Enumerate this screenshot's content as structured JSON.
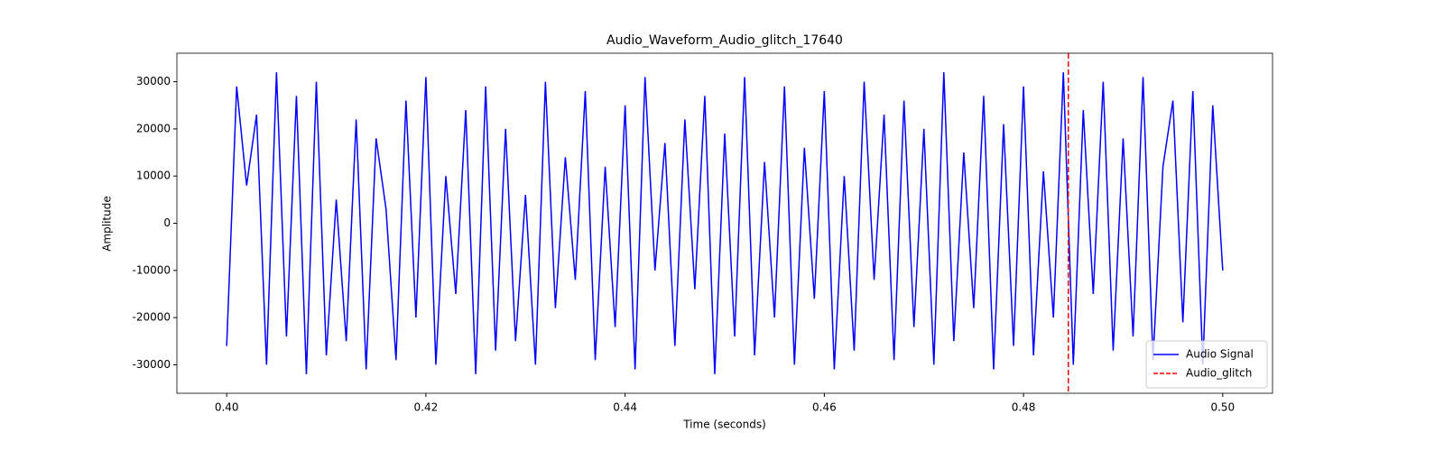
{
  "chart_data": {
    "type": "line",
    "title": "Audio_Waveform_Audio_glitch_17640",
    "x_label": "Time (seconds)",
    "y_label": "Amplitude",
    "x": [
      0.4,
      0.401,
      0.402,
      0.403,
      0.404,
      0.405,
      0.406,
      0.407,
      0.408,
      0.409,
      0.41,
      0.411,
      0.412,
      0.413,
      0.414,
      0.415,
      0.416,
      0.417,
      0.418,
      0.419,
      0.42,
      0.421,
      0.422,
      0.423,
      0.424,
      0.425,
      0.426,
      0.427,
      0.428,
      0.429,
      0.43,
      0.431,
      0.432,
      0.433,
      0.434,
      0.435,
      0.436,
      0.437,
      0.438,
      0.439,
      0.44,
      0.441,
      0.442,
      0.443,
      0.444,
      0.445,
      0.446,
      0.447,
      0.448,
      0.449,
      0.45,
      0.451,
      0.452,
      0.453,
      0.454,
      0.455,
      0.456,
      0.457,
      0.458,
      0.459,
      0.46,
      0.461,
      0.462,
      0.463,
      0.464,
      0.465,
      0.466,
      0.467,
      0.468,
      0.469,
      0.47,
      0.471,
      0.472,
      0.473,
      0.474,
      0.475,
      0.476,
      0.477,
      0.478,
      0.479,
      0.48,
      0.481,
      0.482,
      0.483,
      0.484,
      0.485,
      0.486,
      0.487,
      0.488,
      0.489,
      0.49,
      0.491,
      0.492,
      0.493,
      0.494,
      0.495,
      0.496,
      0.497,
      0.498,
      0.499,
      0.5
    ],
    "series": [
      {
        "name": "Audio Signal",
        "color": "#0000ff",
        "values": [
          -26000,
          29000,
          8000,
          23000,
          -30000,
          32000,
          -24000,
          27000,
          -32000,
          30000,
          -28000,
          5000,
          -25000,
          22000,
          -31000,
          18000,
          3000,
          -29000,
          26000,
          -20000,
          31000,
          -30000,
          10000,
          -15000,
          24000,
          -32000,
          29000,
          -27000,
          20000,
          -25000,
          6000,
          -30000,
          30000,
          -18000,
          14000,
          -12000,
          28000,
          -29000,
          12000,
          -22000,
          25000,
          -31000,
          31000,
          -10000,
          17000,
          -26000,
          22000,
          -14000,
          27000,
          -32000,
          19000,
          -24000,
          31000,
          -28000,
          13000,
          -20000,
          29000,
          -30000,
          16000,
          -16000,
          28000,
          -31000,
          10000,
          -27000,
          30000,
          -12000,
          23000,
          -29000,
          26000,
          -22000,
          20000,
          -30000,
          32000,
          -25000,
          15000,
          -18000,
          27000,
          -31000,
          21000,
          -26000,
          29000,
          -28000,
          11000,
          -20000,
          32000,
          -30000,
          24000,
          -15000,
          30000,
          -27000,
          18000,
          -24000,
          31000,
          -29000,
          12000,
          26000,
          -21000,
          28000,
          -30000,
          25000,
          -10000
        ]
      }
    ],
    "events": [
      {
        "name": "Audio_glitch",
        "x": 0.4845,
        "color": "#ff0000"
      }
    ],
    "xlim": [
      0.395,
      0.505
    ],
    "xticks": [
      {
        "value": 0.4,
        "label": "0.40"
      },
      0.42,
      0.44,
      0.46,
      0.48,
      {
        "value": 0.5,
        "label": "0.50"
      }
    ],
    "ylim": [
      -36044,
      36043
    ],
    "yticks": [
      -30000,
      -20000,
      -10000,
      0,
      10000,
      20000,
      30000
    ],
    "grid": false,
    "legend": "lower right"
  }
}
